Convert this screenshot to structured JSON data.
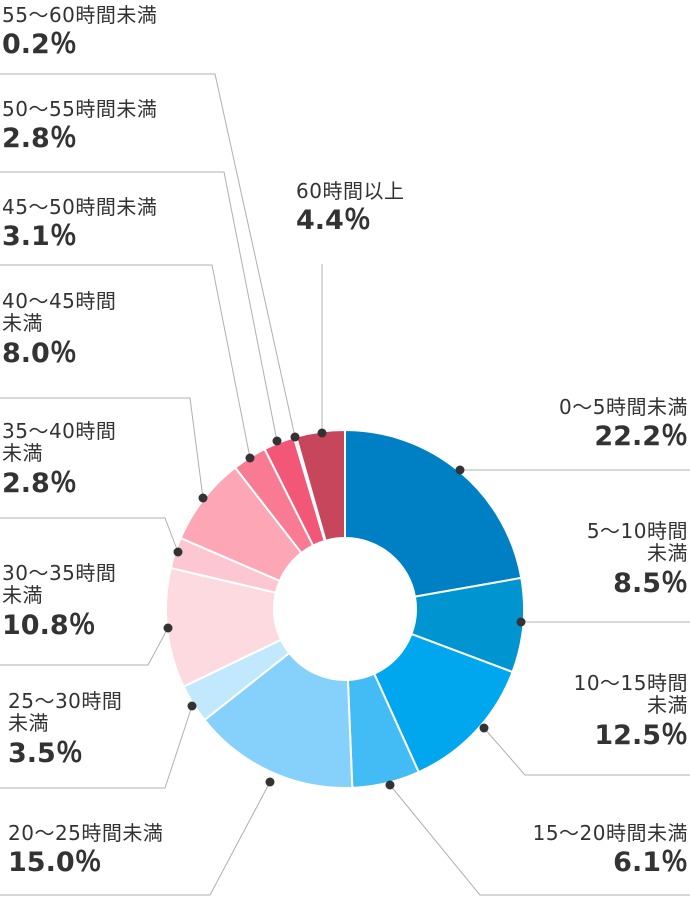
{
  "chart_data": {
    "type": "pie",
    "donut": true,
    "unit": "%",
    "series": [
      {
        "name": "0〜5時間未満",
        "value": 22.2,
        "color": "#0080c4"
      },
      {
        "name": "5〜10時間未満",
        "value": 8.5,
        "color": "#0095d0"
      },
      {
        "name": "10〜15時間未満",
        "value": 12.5,
        "color": "#00a7ee"
      },
      {
        "name": "15〜20時間未満",
        "value": 6.1,
        "color": "#43bcf5"
      },
      {
        "name": "20〜25時間未満",
        "value": 15.0,
        "color": "#86d1fb"
      },
      {
        "name": "25〜30時間未満",
        "value": 3.5,
        "color": "#c2e8fd"
      },
      {
        "name": "30〜35時間未満",
        "value": 10.8,
        "color": "#fdd9e0"
      },
      {
        "name": "35〜40時間未満",
        "value": 2.8,
        "color": "#fdc7d2"
      },
      {
        "name": "40〜45時間未満",
        "value": 8.0,
        "color": "#fca6b6"
      },
      {
        "name": "45〜50時間未満",
        "value": 3.1,
        "color": "#f97a93"
      },
      {
        "name": "50〜55時間未満",
        "value": 2.8,
        "color": "#f35777"
      },
      {
        "name": "55〜60時間未満",
        "value": 0.2,
        "color": "#e0466a"
      },
      {
        "name": "60時間以上",
        "value": 4.4,
        "color": "#c8465c"
      }
    ]
  },
  "labels": [
    {
      "line1": "0〜5時間未満",
      "line2": "",
      "value": "22.2％"
    },
    {
      "line1": "5〜10時間",
      "line2": "未満",
      "value": "8.5％"
    },
    {
      "line1": "10〜15時間",
      "line2": "未満",
      "value": "12.5％"
    },
    {
      "line1": "15〜20時間未満",
      "line2": "",
      "value": "6.1％"
    },
    {
      "line1": "20〜25時間未満",
      "line2": "",
      "value": "15.0％"
    },
    {
      "line1": "25〜30時間",
      "line2": "未満",
      "value": "3.5％"
    },
    {
      "line1": "30〜35時間",
      "line2": "未満",
      "value": "10.8％"
    },
    {
      "line1": "35〜40時間",
      "line2": "未満",
      "value": "2.8％"
    },
    {
      "line1": "40〜45時間",
      "line2": "未満",
      "value": "8.0％"
    },
    {
      "line1": "45〜50時間未満",
      "line2": "",
      "value": "3.1％"
    },
    {
      "line1": "50〜55時間未満",
      "line2": "",
      "value": "2.8％"
    },
    {
      "line1": "55〜60時間未満",
      "line2": "",
      "value": "0.2％"
    },
    {
      "line1": "60時間以上",
      "line2": "",
      "value": "4.4％"
    }
  ]
}
